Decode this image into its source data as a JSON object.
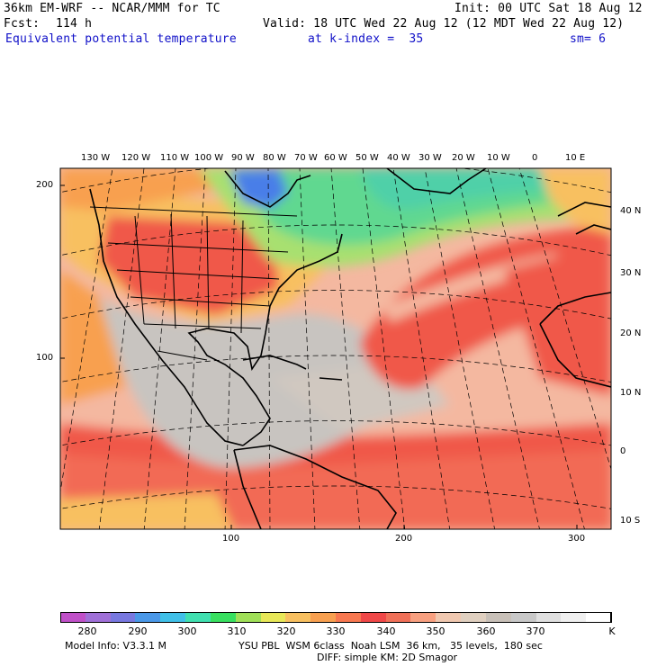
{
  "header": {
    "model_title": "36km EM-WRF -- NCAR/MMM for TC",
    "init": "Init: 00 UTC Sat 18 Aug 12",
    "fcst_label": "Fcst:",
    "fcst_hours": "114 h",
    "valid": "Valid: 18 UTC Wed 22 Aug 12 (12 MDT Wed 22 Aug 12)",
    "field": "Equivalent potential temperature",
    "level": "at k-index =  35",
    "smoothing": "sm= 6"
  },
  "map": {
    "top_lon_labels": [
      "130 W",
      "120 W",
      "110 W",
      "100 W",
      "90 W",
      "80 W",
      "70 W",
      "60 W",
      "50 W",
      "40 W",
      "30 W",
      "20 W",
      "10 W",
      "0",
      "10 E"
    ],
    "right_lat_labels": [
      "40 N",
      "30 N",
      "20 N",
      "10 N",
      "0",
      "10 S"
    ],
    "left_grid_labels": [
      "200",
      "100"
    ],
    "bottom_grid_labels": [
      "100",
      "200",
      "300"
    ]
  },
  "colorbar": {
    "labels": [
      "280",
      "290",
      "300",
      "310",
      "320",
      "330",
      "340",
      "350",
      "360",
      "370"
    ],
    "unit": "K",
    "colors": [
      "#c050c8",
      "#a070d8",
      "#7878e0",
      "#4a98e8",
      "#40c0e8",
      "#40e0b0",
      "#38e060",
      "#a0e058",
      "#e8e858",
      "#f8c060",
      "#f8a050",
      "#f87850",
      "#f04848",
      "#f07058",
      "#f8a080",
      "#f0c8b0",
      "#e0d0c0",
      "#c8c0b8",
      "#c8c8c8",
      "#e0e0e0",
      "#f0f0f0",
      "#ffffff"
    ]
  },
  "footer": {
    "model_info": "Model Info: V3.3.1 M",
    "physics": "YSU PBL  WSM 6class  Noah LSM  36 km,   35 levels,  180 sec",
    "diff": "DIFF: simple KM: 2D Smagor"
  },
  "legend_colors": {
    "cold": "#4a7ee8",
    "cool_green": "#50d890",
    "mild": "#a8e070",
    "warm": "#f8c860",
    "hot": "#f05848",
    "tropical": "#f4b8a0",
    "gray": "#c8c4c0",
    "title_blue": "#1010c8"
  }
}
